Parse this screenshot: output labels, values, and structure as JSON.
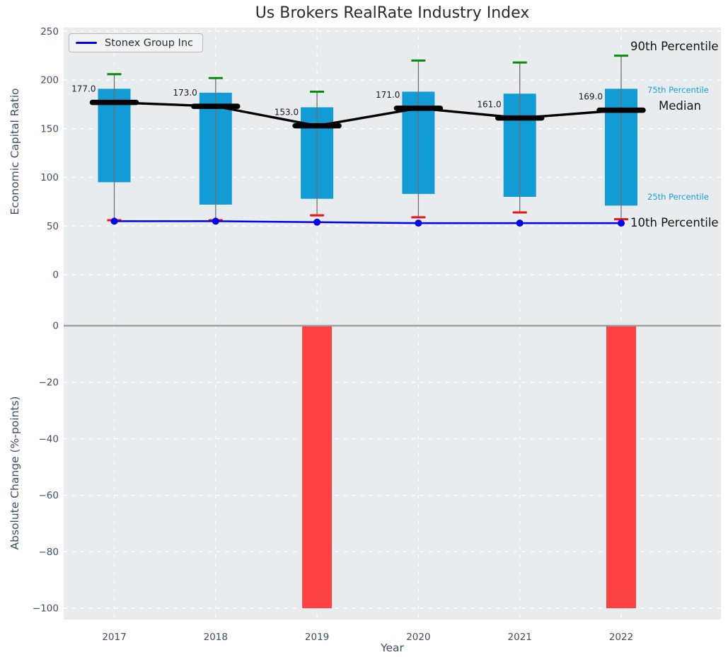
{
  "title": "Us Brokers RealRate Industry Index",
  "legend": {
    "label": "Stonex Group Inc"
  },
  "axis_labels": {
    "top_y": "Economic Capital Ratio",
    "bottom_y": "Absolute Change (%-points)",
    "x": "Year"
  },
  "right_labels": {
    "p90": "90th Percentile",
    "p75": "75th Percentile",
    "median": "Median",
    "p25": "25th Percentile",
    "p10": "10th Percentile"
  },
  "colors": {
    "box": "#129bd5",
    "median_marker": "#000000",
    "median_line": "#000000",
    "stonex_line": "#0000ee",
    "whisker": "#707070",
    "cap_high": "#0a8a0a",
    "cap_low": "#ee1111",
    "bar_negative": "#fb4141",
    "plot_bg": "#e9ecee",
    "grid": "#ffffff",
    "tick_text": "#3d4e66",
    "zero_line": "#a0a0a0",
    "annotation": "#1a1a1a"
  },
  "chart_data": {
    "type": "combo: percentile box-whisker + line (top panel), bar (bottom panel)",
    "categories": [
      "2017",
      "2018",
      "2019",
      "2020",
      "2021",
      "2022"
    ],
    "xlabel": "Year",
    "grid": true,
    "legend_position": "upper left",
    "top": {
      "ylabel": "Economic Capital Ratio",
      "yticks": [
        250,
        200,
        150,
        100,
        50,
        0
      ],
      "ylim": [
        -47,
        254
      ],
      "series": [
        {
          "name": "90th Percentile",
          "role": "whisker_high",
          "values": [
            206,
            202,
            188,
            220,
            218,
            225
          ]
        },
        {
          "name": "75th Percentile",
          "role": "box_top",
          "values": [
            191,
            187,
            172,
            188,
            186,
            191
          ]
        },
        {
          "name": "Median",
          "role": "median",
          "values": [
            177,
            173,
            153,
            171,
            161,
            169
          ]
        },
        {
          "name": "25th Percentile",
          "role": "box_bottom",
          "values": [
            95,
            72,
            78,
            83,
            80,
            71
          ]
        },
        {
          "name": "10th Percentile",
          "role": "whisker_low",
          "values": [
            56,
            56,
            61,
            59,
            64,
            57
          ]
        },
        {
          "name": "Stonex Group Inc",
          "role": "line",
          "values": [
            55,
            55,
            54,
            53,
            53,
            53
          ]
        }
      ],
      "annotations": [
        "177.0",
        "173.0",
        "153.0",
        "171.0",
        "161.0",
        "169.0"
      ]
    },
    "bottom": {
      "ylabel": "Absolute Change (%-points)",
      "yticks": [
        0,
        -20,
        -40,
        -60,
        -80,
        -100
      ],
      "ylim": [
        2,
        -104
      ],
      "values": [
        0,
        0,
        -100,
        0,
        0,
        -100
      ]
    }
  }
}
